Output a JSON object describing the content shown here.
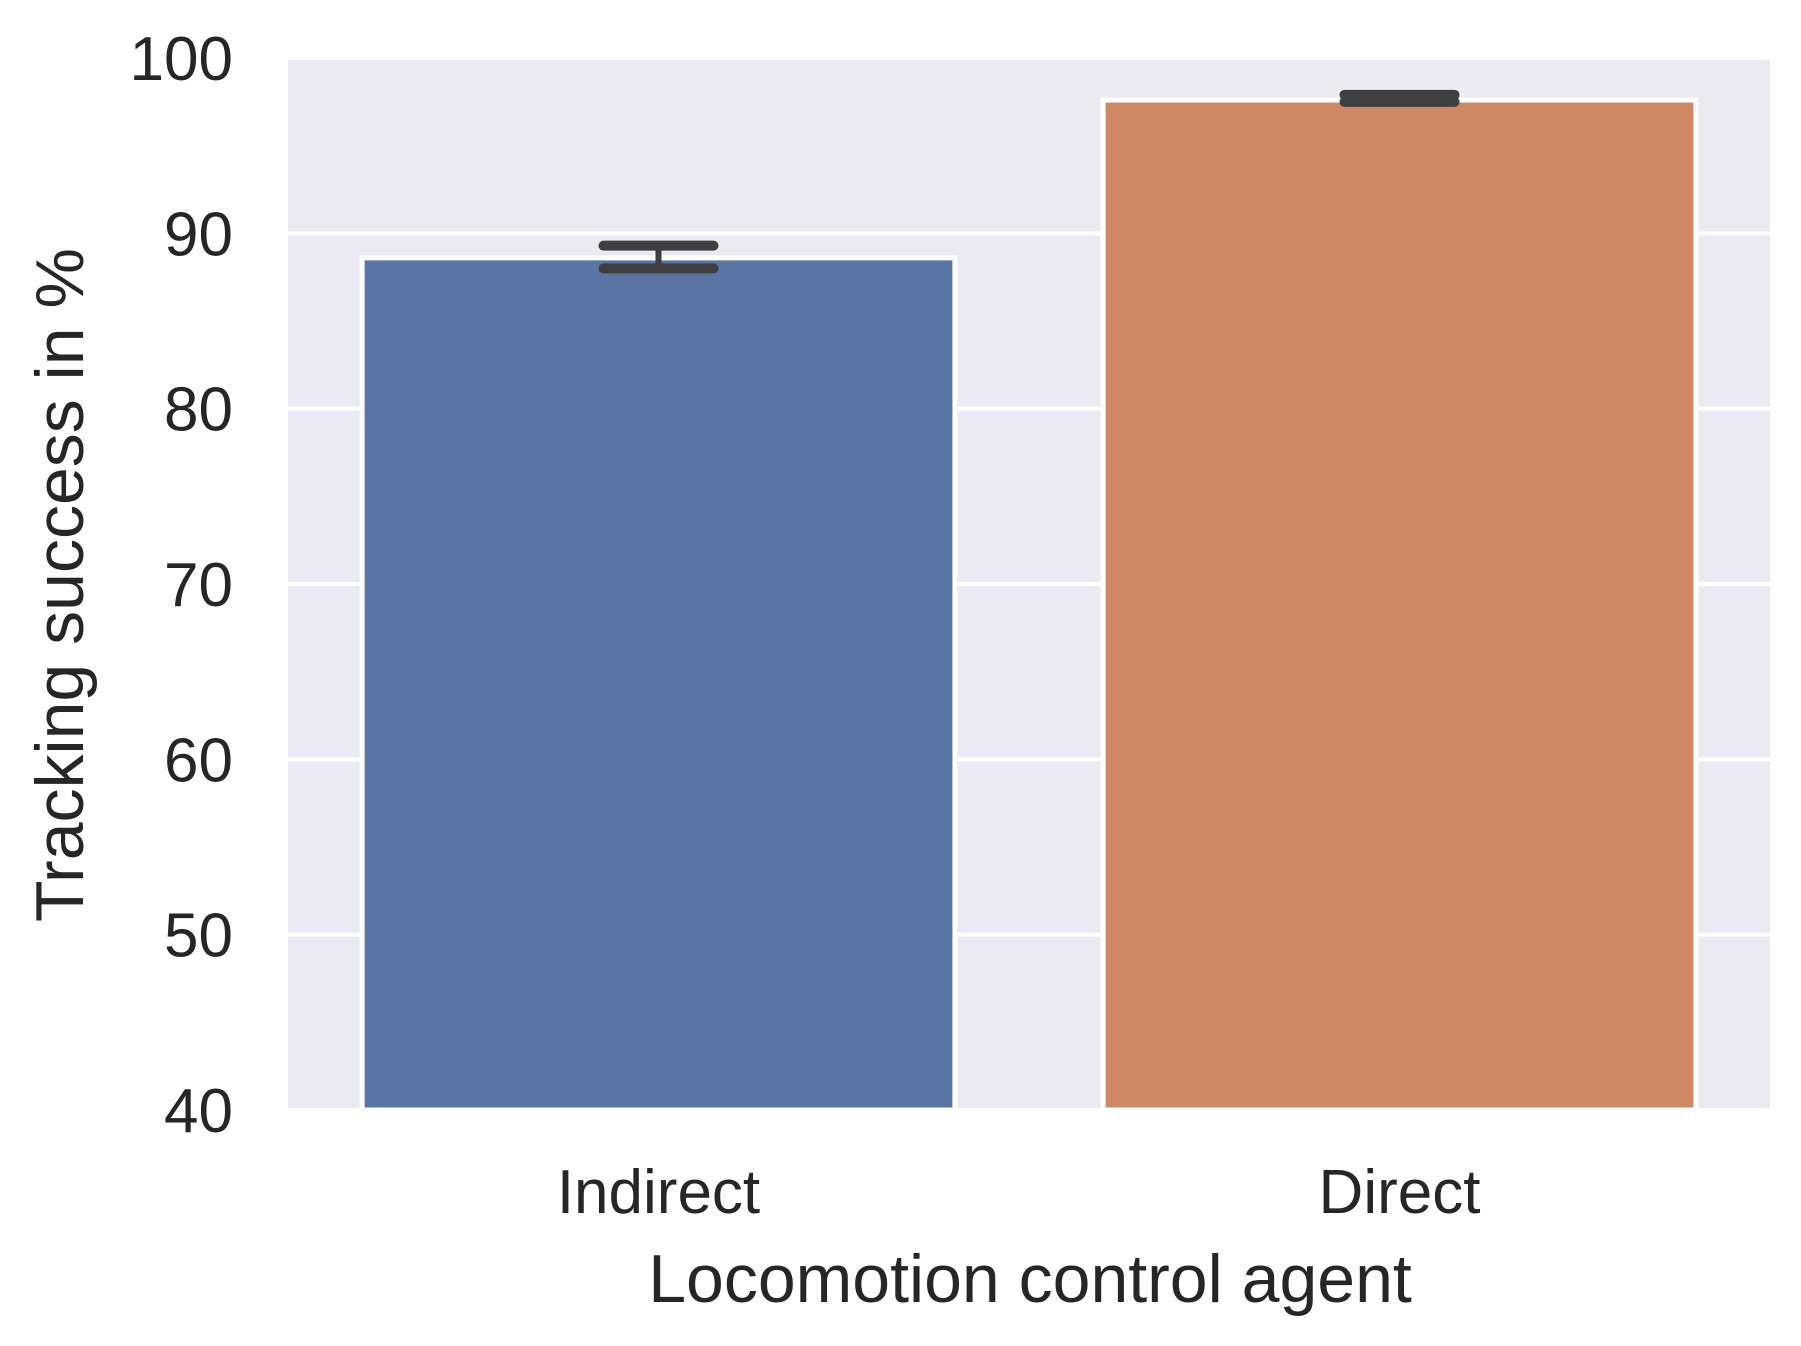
{
  "chart_data": {
    "type": "bar",
    "title": "",
    "xlabel": "Locomotion control agent",
    "ylabel": "Tracking success in %",
    "categories": [
      "Indirect",
      "Direct"
    ],
    "values": [
      88.6,
      97.6
    ],
    "error_bars": [
      {
        "low": 88.0,
        "high": 89.3
      },
      {
        "low": 97.5,
        "high": 97.9
      }
    ],
    "ylim": [
      40,
      100
    ],
    "yticks": [
      40,
      50,
      60,
      70,
      80,
      90,
      100
    ],
    "grid": true,
    "colors": {
      "bars": [
        "#5875a4",
        "#cc8963"
      ],
      "background": "#eaeaf2",
      "grid": "#ffffff",
      "error_bar": "#3f3f3f",
      "text": "#262626"
    }
  }
}
